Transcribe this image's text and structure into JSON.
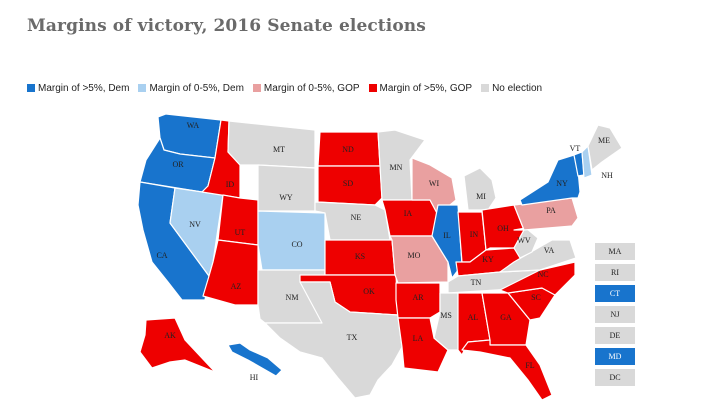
{
  "title": "Margins of victory, 2016 Senate elections",
  "colors": {
    "dem_big": "#1874cd",
    "dem_small": "#a9d0f0",
    "gop_small": "#e9a0a0",
    "gop_big": "#ee0000",
    "none": "#d9d9d9",
    "border": "#ffffff"
  },
  "legend": [
    {
      "key": "dem_big",
      "label": "Margin of >5%, Dem"
    },
    {
      "key": "dem_small",
      "label": "Margin of 0-5%, Dem"
    },
    {
      "key": "gop_small",
      "label": "Margin of 0-5%, GOP"
    },
    {
      "key": "gop_big",
      "label": "Margin of >5%, GOP"
    },
    {
      "key": "none",
      "label": "No election"
    }
  ],
  "states": [
    {
      "abbr": "WA",
      "category": "dem_big"
    },
    {
      "abbr": "OR",
      "category": "dem_big"
    },
    {
      "abbr": "CA",
      "category": "dem_big"
    },
    {
      "abbr": "NV",
      "category": "dem_small"
    },
    {
      "abbr": "ID",
      "category": "gop_big"
    },
    {
      "abbr": "UT",
      "category": "gop_big"
    },
    {
      "abbr": "AZ",
      "category": "gop_big"
    },
    {
      "abbr": "MT",
      "category": "none"
    },
    {
      "abbr": "WY",
      "category": "none"
    },
    {
      "abbr": "CO",
      "category": "dem_small"
    },
    {
      "abbr": "NM",
      "category": "none"
    },
    {
      "abbr": "ND",
      "category": "gop_big"
    },
    {
      "abbr": "SD",
      "category": "gop_big"
    },
    {
      "abbr": "NE",
      "category": "none"
    },
    {
      "abbr": "KS",
      "category": "gop_big"
    },
    {
      "abbr": "OK",
      "category": "gop_big"
    },
    {
      "abbr": "TX",
      "category": "none"
    },
    {
      "abbr": "MN",
      "category": "none"
    },
    {
      "abbr": "IA",
      "category": "gop_big"
    },
    {
      "abbr": "MO",
      "category": "gop_small"
    },
    {
      "abbr": "AR",
      "category": "gop_big"
    },
    {
      "abbr": "LA",
      "category": "gop_big"
    },
    {
      "abbr": "WI",
      "category": "gop_small"
    },
    {
      "abbr": "IL",
      "category": "dem_big"
    },
    {
      "abbr": "MI",
      "category": "none"
    },
    {
      "abbr": "IN",
      "category": "gop_big"
    },
    {
      "abbr": "OH",
      "category": "gop_big"
    },
    {
      "abbr": "KY",
      "category": "gop_big"
    },
    {
      "abbr": "TN",
      "category": "none"
    },
    {
      "abbr": "MS",
      "category": "none"
    },
    {
      "abbr": "AL",
      "category": "gop_big"
    },
    {
      "abbr": "GA",
      "category": "gop_big"
    },
    {
      "abbr": "FL",
      "category": "gop_big"
    },
    {
      "abbr": "SC",
      "category": "gop_big"
    },
    {
      "abbr": "NC",
      "category": "gop_big"
    },
    {
      "abbr": "VA",
      "category": "none"
    },
    {
      "abbr": "WV",
      "category": "none"
    },
    {
      "abbr": "PA",
      "category": "gop_small"
    },
    {
      "abbr": "NY",
      "category": "dem_big"
    },
    {
      "abbr": "VT",
      "category": "dem_big"
    },
    {
      "abbr": "NH",
      "category": "dem_small"
    },
    {
      "abbr": "ME",
      "category": "none"
    },
    {
      "abbr": "AK",
      "category": "gop_big"
    },
    {
      "abbr": "HI",
      "category": "dem_big"
    }
  ],
  "small_states": [
    {
      "abbr": "MA",
      "category": "none"
    },
    {
      "abbr": "RI",
      "category": "none"
    },
    {
      "abbr": "CT",
      "category": "dem_big"
    },
    {
      "abbr": "NJ",
      "category": "none"
    },
    {
      "abbr": "DE",
      "category": "none"
    },
    {
      "abbr": "MD",
      "category": "dem_big"
    },
    {
      "abbr": "DC",
      "category": "none"
    }
  ]
}
